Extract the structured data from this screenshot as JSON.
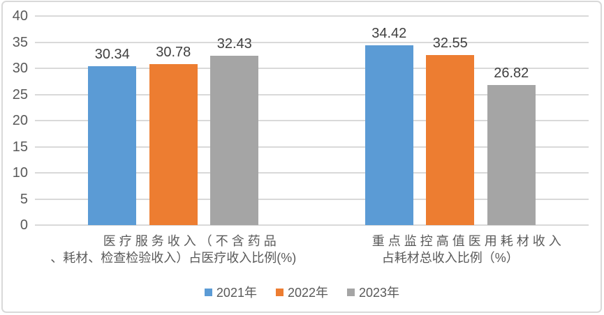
{
  "chart_data": {
    "type": "bar",
    "title": "",
    "categories": [
      "医疗服务收入（不含药品、耗材、检查检验收入）占医疗收入比例(%)",
      "重点监控高值医用耗材收入占耗材总收入比例（%）"
    ],
    "category_lines": [
      [
        "医疗服务收入（不含药品",
        "、耗材、检查检验收入）占医疗收入比例(%)"
      ],
      [
        "重点监控高值医用耗材收入",
        "占耗材总收入比例（%）"
      ]
    ],
    "series": [
      {
        "name": "2021年",
        "color": "#5B9BD5",
        "values": [
          30.34,
          34.42
        ]
      },
      {
        "name": "2022年",
        "color": "#ED7D31",
        "values": [
          30.78,
          32.55
        ]
      },
      {
        "name": "2023年",
        "color": "#A5A5A5",
        "values": [
          32.43,
          26.82
        ]
      }
    ],
    "data_labels": [
      [
        "30.34",
        "30.78",
        "32.43"
      ],
      [
        "34.42",
        "32.55",
        "26.82"
      ]
    ],
    "ylim": [
      0,
      40
    ],
    "ytick_step": 5,
    "ytick_labels": [
      "0",
      "5",
      "10",
      "15",
      "20",
      "25",
      "30",
      "35",
      "40"
    ],
    "grid": true,
    "legend_position": "bottom"
  },
  "colors": {
    "gridline": "#D9D9D9",
    "axis_line": "#D6D6D6",
    "axis_text": "#595959",
    "value_text": "#404040",
    "frame_border": "#D9D9D9",
    "background": "#FFFFFF"
  }
}
